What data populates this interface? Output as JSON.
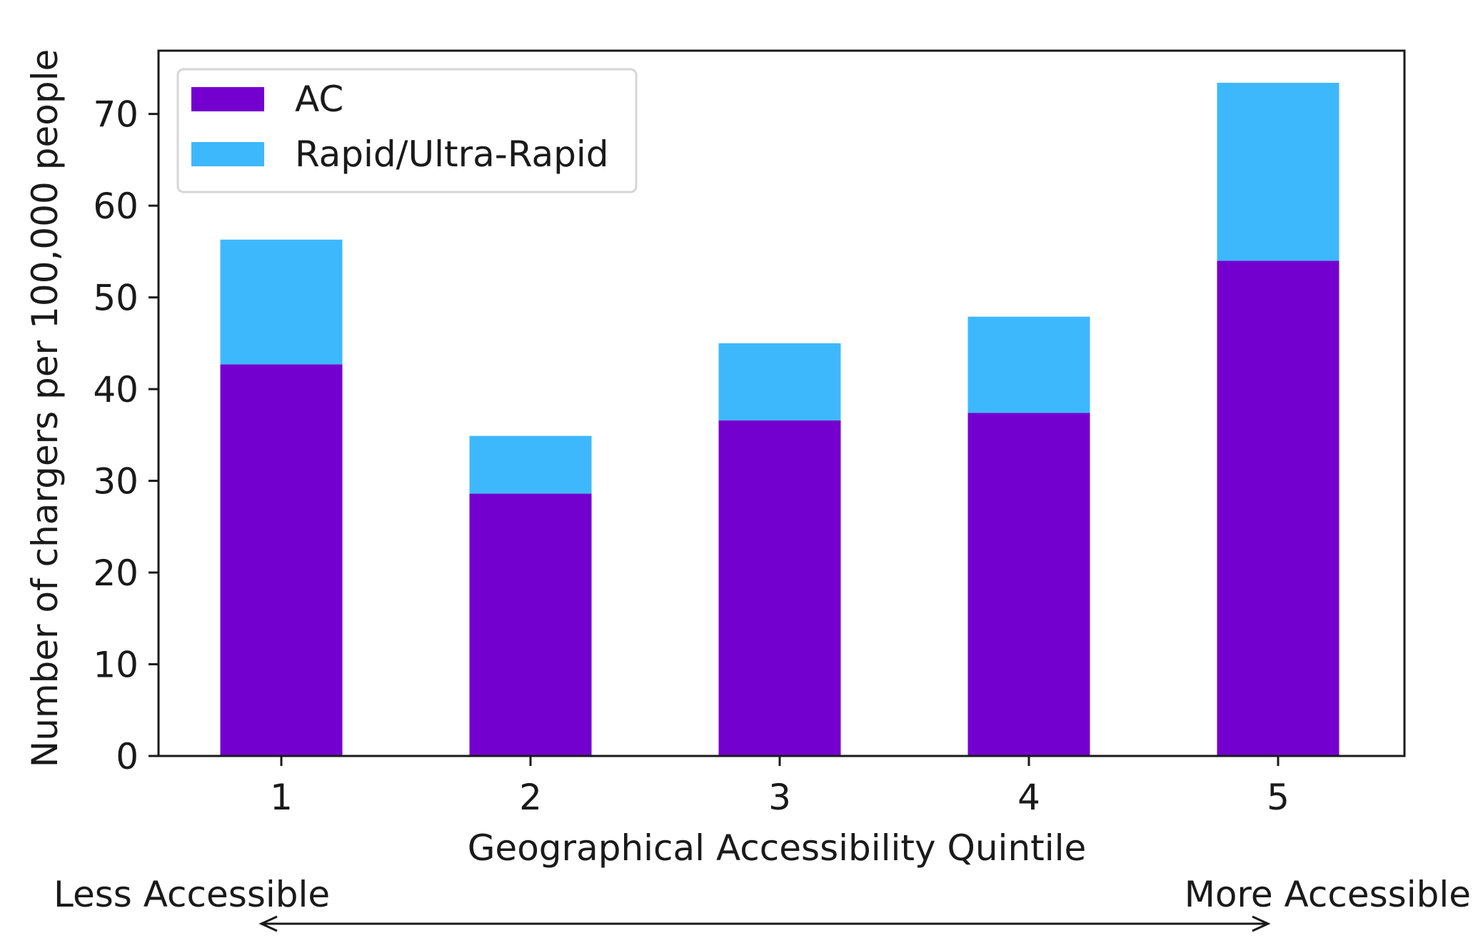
{
  "chart_data": {
    "type": "bar",
    "stacked": true,
    "categories": [
      "1",
      "2",
      "3",
      "4",
      "5"
    ],
    "series": [
      {
        "name": "AC",
        "values": [
          42.7,
          28.6,
          36.6,
          37.4,
          54.0
        ]
      },
      {
        "name": "Rapid/Ultra-Rapid",
        "values": [
          13.6,
          6.3,
          8.4,
          10.5,
          19.4
        ]
      }
    ],
    "title": "",
    "xlabel": "Geographical Accessibility Quintile",
    "ylabel": "Number of chargers per 100,000 people",
    "ylim": [
      0,
      76.9
    ],
    "yticks": [
      0,
      10,
      20,
      30,
      40,
      50,
      60,
      70
    ],
    "grid": false,
    "legend_position": "top-left",
    "colors": {
      "AC": "#7400D0",
      "Rapid/Ultra-Rapid": "#3EB8FC",
      "axes": "#1a1a1a",
      "legend_border": "#d6d6d6"
    },
    "annotations": {
      "left": "Less Accessible",
      "right": "More Accessible",
      "arrow": "double-headed"
    }
  }
}
